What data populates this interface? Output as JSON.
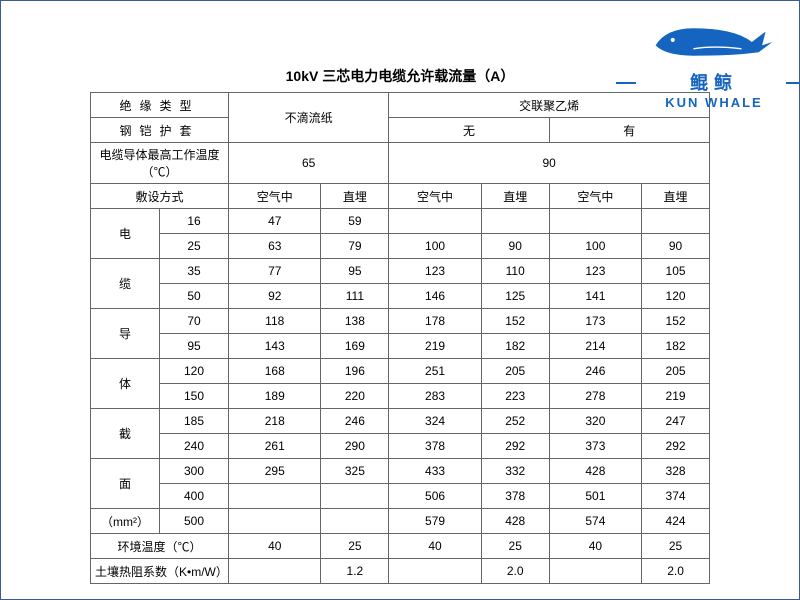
{
  "title": "10kV 三芯电力电缆允许载流量（A）",
  "logo": {
    "cn": "鲲鲸",
    "en": "KUN WHALE"
  },
  "headers": {
    "insulation_type": "绝缘类型",
    "armor_sheath": "钢铠护套",
    "max_temp": "电缆导体最高工作温度（℃）",
    "laying_method": "敷设方式",
    "paper": "不滴流纸",
    "xlpe": "交联聚乙烯",
    "none": "无",
    "yes": "有",
    "temp65": "65",
    "temp90": "90",
    "air": "空气中",
    "buried": "直埋",
    "section_label_l1": "电",
    "section_label_l2": "缆",
    "section_label_l3": "导",
    "section_label_l4": "体",
    "section_label_l5": "截",
    "section_label_l6": "面",
    "section_unit": "（mm²）",
    "ambient_temp": "环境温度（℃）",
    "soil_resist": "土壤热阻系数（K•m/W）"
  },
  "sizes": [
    "16",
    "25",
    "35",
    "50",
    "70",
    "95",
    "120",
    "150",
    "185",
    "240",
    "300",
    "400",
    "500"
  ],
  "data": {
    "16": [
      "47",
      "59",
      "",
      "",
      "",
      ""
    ],
    "25": [
      "63",
      "79",
      "100",
      "90",
      "100",
      "90"
    ],
    "35": [
      "77",
      "95",
      "123",
      "110",
      "123",
      "105"
    ],
    "50": [
      "92",
      "111",
      "146",
      "125",
      "141",
      "120"
    ],
    "70": [
      "118",
      "138",
      "178",
      "152",
      "173",
      "152"
    ],
    "95": [
      "143",
      "169",
      "219",
      "182",
      "214",
      "182"
    ],
    "120": [
      "168",
      "196",
      "251",
      "205",
      "246",
      "205"
    ],
    "150": [
      "189",
      "220",
      "283",
      "223",
      "278",
      "219"
    ],
    "185": [
      "218",
      "246",
      "324",
      "252",
      "320",
      "247"
    ],
    "240": [
      "261",
      "290",
      "378",
      "292",
      "373",
      "292"
    ],
    "300": [
      "295",
      "325",
      "433",
      "332",
      "428",
      "328"
    ],
    "400": [
      "",
      "",
      "506",
      "378",
      "501",
      "374"
    ],
    "500": [
      "",
      "",
      "579",
      "428",
      "574",
      "424"
    ]
  },
  "ambient": [
    "40",
    "25",
    "40",
    "25",
    "40",
    "25"
  ],
  "soil": [
    "",
    "1.2",
    "",
    "2.0",
    "",
    "2.0"
  ],
  "colors": {
    "border": "#666666",
    "logo": "#1565c0",
    "text": "#000000"
  }
}
